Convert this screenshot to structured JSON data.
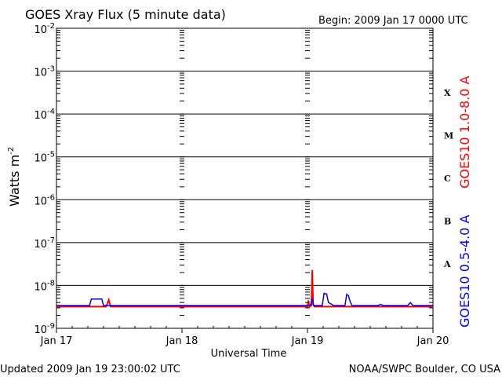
{
  "header": {
    "title": "GOES Xray Flux (5 minute data)",
    "begin": "Begin:  2009 Jan 17 0000 UTC"
  },
  "footer": {
    "updated": "Updated 2009 Jan 19 23:00:02 UTC",
    "credit": "NOAA/SWPC Boulder, CO USA"
  },
  "colors": {
    "long_channel": "#ff0000",
    "short_channel": "#0000ff",
    "grid": "#000000"
  },
  "chart_data": {
    "type": "line",
    "title": "GOES Xray Flux (5 minute data)",
    "xlabel": "Universal Time",
    "ylabel": "Watts m",
    "ylabel_superscript": "-2",
    "y_scale": "log",
    "ylim": [
      1e-09,
      0.01
    ],
    "xlim": [
      "2009-01-17T00:00",
      "2009-01-20T00:00"
    ],
    "grid": true,
    "x_ticks": [
      "Jan 17",
      "Jan 18",
      "Jan 19",
      "Jan 20"
    ],
    "y_ticks": [
      {
        "base": "10",
        "exp": "-2"
      },
      {
        "base": "10",
        "exp": "-3"
      },
      {
        "base": "10",
        "exp": "-4"
      },
      {
        "base": "10",
        "exp": "-5"
      },
      {
        "base": "10",
        "exp": "-6"
      },
      {
        "base": "10",
        "exp": "-7"
      },
      {
        "base": "10",
        "exp": "-8"
      },
      {
        "base": "10",
        "exp": "-9"
      }
    ],
    "flare_classes": [
      {
        "label": "X",
        "level": 0.0001
      },
      {
        "label": "M",
        "level": 1e-05
      },
      {
        "label": "C",
        "level": 1e-06
      },
      {
        "label": "B",
        "level": 1e-07
      },
      {
        "label": "A",
        "level": 1e-08
      }
    ],
    "series": [
      {
        "name": "GOES10 1.0-8.0 A",
        "color": "#ff0000",
        "points": [
          [
            "2009-01-17T00:00",
            3.2e-09
          ],
          [
            "2009-01-17T09:30",
            3.2e-09
          ],
          [
            "2009-01-17T10:00",
            4.6e-09
          ],
          [
            "2009-01-17T10:20",
            3.2e-09
          ],
          [
            "2009-01-19T00:00",
            3.2e-09
          ],
          [
            "2009-01-19T00:10",
            4.5e-09
          ],
          [
            "2009-01-19T00:20",
            3.2e-09
          ],
          [
            "2009-01-19T00:45",
            3.4e-09
          ],
          [
            "2009-01-19T00:55",
            2.3e-08
          ],
          [
            "2009-01-19T01:05",
            3.6e-09
          ],
          [
            "2009-01-19T01:20",
            3.2e-09
          ],
          [
            "2009-01-20T00:00",
            3.2e-09
          ]
        ]
      },
      {
        "name": "GOES10 0.5-4.0 A",
        "color": "#0000ff",
        "points": [
          [
            "2009-01-17T00:00",
            3.4e-09
          ],
          [
            "2009-01-17T06:20",
            3.4e-09
          ],
          [
            "2009-01-17T06:40",
            4.8e-09
          ],
          [
            "2009-01-17T08:40",
            4.8e-09
          ],
          [
            "2009-01-17T09:00",
            3.4e-09
          ],
          [
            "2009-01-19T00:30",
            3.4e-09
          ],
          [
            "2009-01-19T00:45",
            4e-09
          ],
          [
            "2009-01-19T00:55",
            5e-09
          ],
          [
            "2009-01-19T01:10",
            3.4e-09
          ],
          [
            "2009-01-19T02:50",
            3.4e-09
          ],
          [
            "2009-01-19T03:10",
            6.5e-09
          ],
          [
            "2009-01-19T03:40",
            6.3e-09
          ],
          [
            "2009-01-19T04:00",
            4e-09
          ],
          [
            "2009-01-19T05:00",
            3.4e-09
          ],
          [
            "2009-01-19T07:10",
            3.4e-09
          ],
          [
            "2009-01-19T07:30",
            6.2e-09
          ],
          [
            "2009-01-19T07:50",
            5.8e-09
          ],
          [
            "2009-01-19T08:10",
            4.2e-09
          ],
          [
            "2009-01-19T08:30",
            3.4e-09
          ],
          [
            "2009-01-19T13:30",
            3.4e-09
          ],
          [
            "2009-01-19T14:00",
            3.6e-09
          ],
          [
            "2009-01-19T14:30",
            3.4e-09
          ],
          [
            "2009-01-19T19:10",
            3.4e-09
          ],
          [
            "2009-01-19T19:40",
            4e-09
          ],
          [
            "2009-01-19T20:10",
            3.4e-09
          ],
          [
            "2009-01-20T00:00",
            3.4e-09
          ]
        ]
      }
    ]
  }
}
